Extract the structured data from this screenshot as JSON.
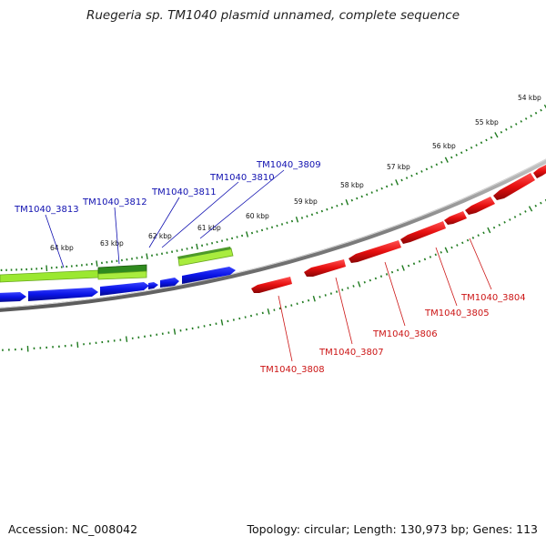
{
  "title": "Ruegeria sp. TM1040 plasmid unnamed, complete sequence",
  "accession": "Accession: NC_008042",
  "summary": "Topology: circular; Length: 130,973 bp; Genes: 113",
  "colors": {
    "forward_gene": "#0a14e6",
    "reverse_gene": "#e60f0f",
    "forward_label": "#1010b0",
    "reverse_label": "#cc1515",
    "feature_light": "#9be830",
    "feature_dark": "#2f8a1e",
    "tick": "#1f7a1f",
    "backbone": "#7f7f7f"
  },
  "kbp_labels": [
    "54 kbp",
    "55 kbp",
    "56 kbp",
    "57 kbp",
    "58 kbp",
    "59 kbp",
    "60 kbp",
    "61 kbp",
    "62 kbp",
    "63 kbp",
    "64 kbp"
  ],
  "forward_genes": [
    "TM1040_3813",
    "TM1040_3812",
    "TM1040_3811",
    "TM1040_3810",
    "TM1040_3809"
  ],
  "reverse_genes": [
    "TM1040_3808",
    "TM1040_3807",
    "TM1040_3806",
    "TM1040_3805",
    "TM1040_3804"
  ]
}
